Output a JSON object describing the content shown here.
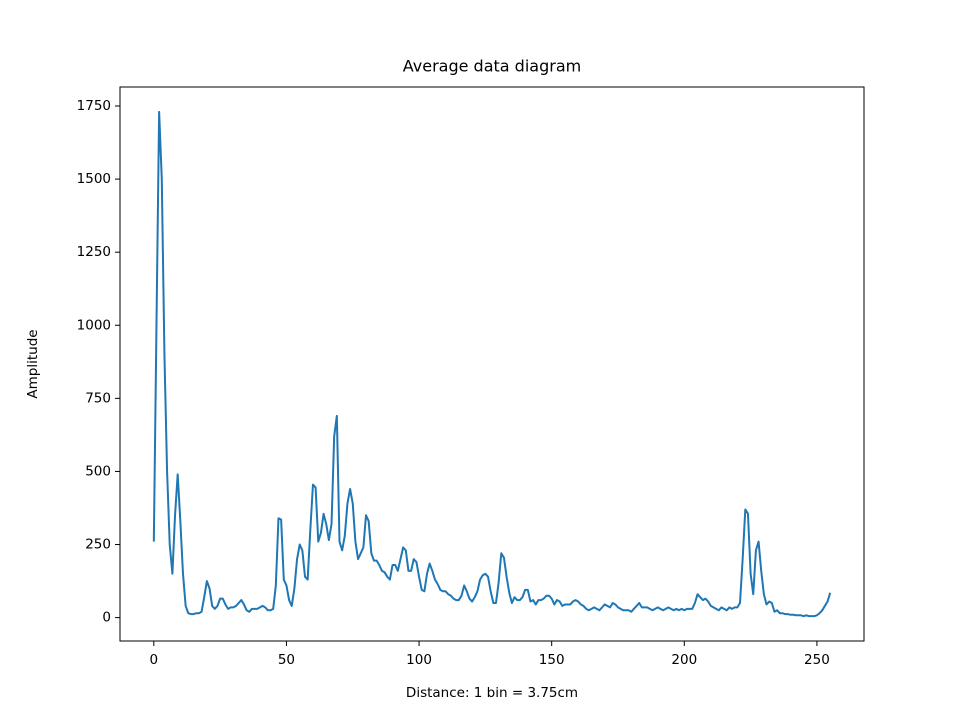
{
  "chart_data": {
    "type": "line",
    "title": "Average data diagram",
    "x_label": "Distance: 1 bin = 3.75cm",
    "y_label": "Amplitude",
    "color": "#1f77b4",
    "x": [
      0,
      1,
      2,
      3,
      4,
      5,
      6,
      7,
      8,
      9,
      10,
      11,
      12,
      13,
      14,
      15,
      16,
      17,
      18,
      19,
      20,
      21,
      22,
      23,
      24,
      25,
      26,
      27,
      28,
      29,
      30,
      31,
      32,
      33,
      34,
      35,
      36,
      37,
      38,
      39,
      40,
      41,
      42,
      43,
      44,
      45,
      46,
      47,
      48,
      49,
      50,
      51,
      52,
      53,
      54,
      55,
      56,
      57,
      58,
      59,
      60,
      61,
      62,
      63,
      64,
      65,
      66,
      67,
      68,
      69,
      70,
      71,
      72,
      73,
      74,
      75,
      76,
      77,
      78,
      79,
      80,
      81,
      82,
      83,
      84,
      85,
      86,
      87,
      88,
      89,
      90,
      91,
      92,
      93,
      94,
      95,
      96,
      97,
      98,
      99,
      100,
      101,
      102,
      103,
      104,
      105,
      106,
      107,
      108,
      109,
      110,
      111,
      112,
      113,
      114,
      115,
      116,
      117,
      118,
      119,
      120,
      121,
      122,
      123,
      124,
      125,
      126,
      127,
      128,
      129,
      130,
      131,
      132,
      133,
      134,
      135,
      136,
      137,
      138,
      139,
      140,
      141,
      142,
      143,
      144,
      145,
      146,
      147,
      148,
      149,
      150,
      151,
      152,
      153,
      154,
      155,
      156,
      157,
      158,
      159,
      160,
      161,
      162,
      163,
      164,
      165,
      166,
      167,
      168,
      169,
      170,
      171,
      172,
      173,
      174,
      175,
      176,
      177,
      178,
      179,
      180,
      181,
      182,
      183,
      184,
      185,
      186,
      187,
      188,
      189,
      190,
      191,
      192,
      193,
      194,
      195,
      196,
      197,
      198,
      199,
      200,
      201,
      202,
      203,
      204,
      205,
      206,
      207,
      208,
      209,
      210,
      211,
      212,
      213,
      214,
      215,
      216,
      217,
      218,
      219,
      220,
      221,
      222,
      223,
      224,
      225,
      226,
      227,
      228,
      229,
      230,
      231,
      232,
      233,
      234,
      235,
      236,
      237,
      238,
      239,
      240,
      241,
      242,
      243,
      244,
      245,
      246,
      247,
      248,
      249,
      250,
      251,
      252,
      253,
      254,
      255
    ],
    "values": [
      260,
      1000,
      1730,
      1500,
      900,
      500,
      250,
      150,
      350,
      490,
      330,
      150,
      40,
      15,
      12,
      12,
      15,
      15,
      20,
      70,
      125,
      100,
      40,
      30,
      40,
      65,
      65,
      45,
      30,
      35,
      35,
      40,
      50,
      60,
      45,
      25,
      20,
      30,
      30,
      30,
      35,
      40,
      35,
      25,
      25,
      30,
      110,
      340,
      335,
      130,
      110,
      60,
      40,
      100,
      200,
      250,
      230,
      140,
      130,
      300,
      455,
      445,
      260,
      290,
      355,
      320,
      265,
      320,
      620,
      690,
      260,
      230,
      280,
      390,
      440,
      390,
      260,
      200,
      220,
      240,
      350,
      330,
      220,
      195,
      195,
      180,
      160,
      155,
      140,
      130,
      180,
      180,
      160,
      200,
      240,
      230,
      160,
      160,
      200,
      190,
      140,
      95,
      90,
      150,
      185,
      160,
      130,
      115,
      95,
      90,
      90,
      80,
      75,
      65,
      60,
      60,
      75,
      110,
      90,
      65,
      55,
      70,
      90,
      130,
      145,
      150,
      140,
      90,
      50,
      50,
      120,
      220,
      205,
      140,
      85,
      50,
      70,
      60,
      60,
      70,
      95,
      95,
      55,
      60,
      45,
      60,
      60,
      65,
      75,
      75,
      65,
      45,
      60,
      55,
      40,
      45,
      45,
      45,
      55,
      60,
      55,
      45,
      40,
      30,
      25,
      30,
      35,
      30,
      25,
      35,
      45,
      40,
      35,
      50,
      45,
      35,
      30,
      25,
      25,
      25,
      20,
      30,
      40,
      50,
      35,
      35,
      35,
      30,
      25,
      30,
      35,
      30,
      25,
      30,
      35,
      30,
      25,
      30,
      25,
      30,
      25,
      30,
      30,
      30,
      50,
      80,
      70,
      60,
      65,
      55,
      40,
      35,
      30,
      25,
      35,
      30,
      25,
      35,
      30,
      35,
      35,
      50,
      200,
      370,
      355,
      150,
      80,
      230,
      260,
      160,
      80,
      45,
      55,
      50,
      20,
      25,
      15,
      15,
      12,
      12,
      10,
      10,
      8,
      8,
      8,
      5,
      8,
      5,
      5,
      5,
      8,
      15,
      25,
      40,
      55,
      85
    ],
    "xlim": [
      -12.75,
      267.75
    ],
    "xticks": [
      0,
      50,
      100,
      150,
      200,
      250
    ],
    "ylim": [
      -80,
      1815
    ],
    "yticks": [
      0,
      250,
      500,
      750,
      1000,
      1250,
      1500,
      1750
    ]
  }
}
